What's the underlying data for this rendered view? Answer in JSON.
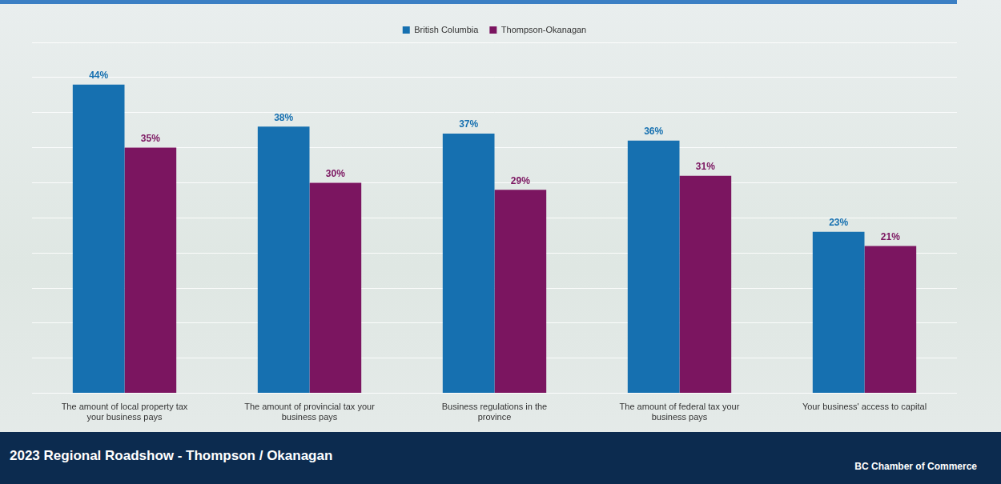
{
  "chart_data": {
    "type": "bar",
    "categories": [
      "The amount of local property tax your business pays",
      "The amount of provincial tax your business pays",
      "Business regulations in the province",
      "The amount of federal tax your business pays",
      "Your business' access to capital"
    ],
    "series": [
      {
        "name": "British Columbia",
        "color": "#1670b0",
        "values": [
          44,
          38,
          37,
          36,
          23
        ],
        "value_labels": [
          "44%",
          "38%",
          "37%",
          "36%",
          "23%"
        ]
      },
      {
        "name": "Thompson-Okanagan",
        "color": "#7b1560",
        "values": [
          35,
          30,
          29,
          31,
          21
        ],
        "value_labels": [
          "35%",
          "30%",
          "29%",
          "31%",
          "21%"
        ]
      }
    ],
    "ylim": [
      0,
      50
    ],
    "yticks": [
      0,
      5,
      10,
      15,
      20,
      25,
      30,
      35,
      40,
      45,
      50
    ],
    "grid": true,
    "legend": "top",
    "data_labels": true,
    "tick_labels": "x",
    "footer": "2023 Regional Roadshow - Thompson / Okanagan",
    "source": "BC Chamber of Commerce"
  }
}
